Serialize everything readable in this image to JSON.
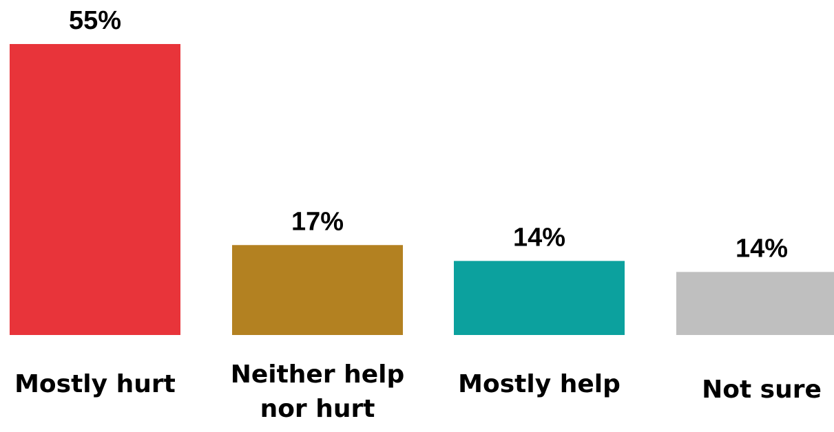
{
  "chart_data": {
    "type": "bar",
    "categories": [
      "Mostly hurt",
      "Neither help nor hurt",
      "Mostly help",
      "Not sure"
    ],
    "category_lines": [
      [
        "Mostly hurt"
      ],
      [
        "Neither help",
        "nor hurt"
      ],
      [
        "Mostly help"
      ],
      [
        "Not sure"
      ]
    ],
    "values": [
      55,
      17,
      14,
      14
    ],
    "value_labels": [
      "55%",
      "17%",
      "14%",
      "14%"
    ],
    "colors": [
      "#e8343a",
      "#b38121",
      "#0ca19e",
      "#bfbfbf"
    ],
    "title": "",
    "xlabel": "",
    "ylabel": "",
    "ylim": [
      0,
      55
    ],
    "grid": false,
    "legend": "none"
  }
}
